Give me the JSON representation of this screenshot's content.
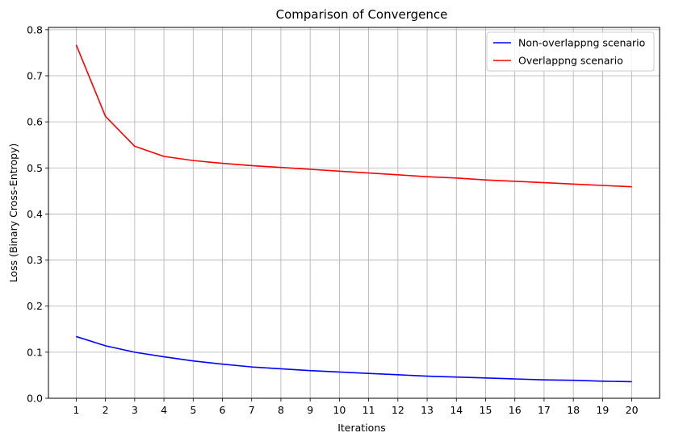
{
  "chart_data": {
    "type": "line",
    "title": "Comparison of Convergence",
    "xlabel": "Iterations",
    "ylabel": "Loss (Binary Cross-Entropy)",
    "x": [
      1,
      2,
      3,
      4,
      5,
      6,
      7,
      8,
      9,
      10,
      11,
      12,
      13,
      14,
      15,
      16,
      17,
      18,
      19,
      20
    ],
    "xticks": [
      "1",
      "2",
      "3",
      "4",
      "5",
      "6",
      "7",
      "8",
      "9",
      "10",
      "11",
      "12",
      "13",
      "14",
      "15",
      "16",
      "17",
      "18",
      "19",
      "20"
    ],
    "yticks": [
      "0.0",
      "0.1",
      "0.2",
      "0.3",
      "0.4",
      "0.5",
      "0.6",
      "0.7",
      "0.8"
    ],
    "xlim": [
      0.05,
      20.95
    ],
    "ylim": [
      0.0,
      0.805
    ],
    "grid": true,
    "legend_position": "top-right",
    "series": [
      {
        "name": "Non-overlappng scenario",
        "color": "#0000ff",
        "values": [
          0.134,
          0.114,
          0.1,
          0.09,
          0.081,
          0.074,
          0.068,
          0.064,
          0.06,
          0.057,
          0.054,
          0.051,
          0.048,
          0.046,
          0.044,
          0.042,
          0.04,
          0.039,
          0.037,
          0.036
        ]
      },
      {
        "name": "Overlappng scenario",
        "color": "#ff0000",
        "values": [
          0.767,
          0.612,
          0.547,
          0.525,
          0.516,
          0.51,
          0.505,
          0.501,
          0.497,
          0.493,
          0.489,
          0.485,
          0.481,
          0.478,
          0.474,
          0.471,
          0.468,
          0.465,
          0.462,
          0.459
        ]
      }
    ]
  }
}
